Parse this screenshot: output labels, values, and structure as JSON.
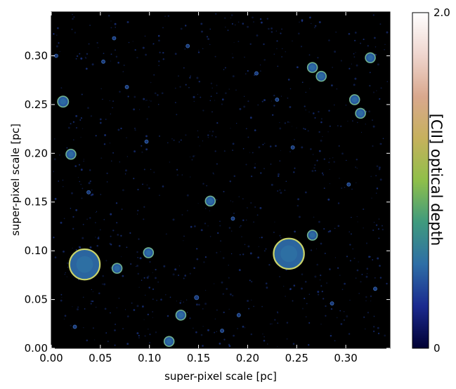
{
  "chart_data": {
    "type": "scatter",
    "xlabel": "super-pixel scale [pc]",
    "ylabel": "super-pixel scale [pc]",
    "xlim": [
      0.0,
      0.345
    ],
    "ylim": [
      0.0,
      0.345
    ],
    "xticks": [
      "0.00",
      "0.05",
      "0.10",
      "0.15",
      "0.20",
      "0.25",
      "0.30"
    ],
    "yticks": [
      "0.00",
      "0.05",
      "0.10",
      "0.15",
      "0.20",
      "0.25",
      "0.30"
    ],
    "colorbar": {
      "label": "[CII] optical depth",
      "min_label": "0",
      "max_label": "2.0",
      "range": [
        0,
        2.0
      ],
      "colors": [
        "#000033",
        "#1b2a8f",
        "#2e6ea6",
        "#3f9a7e",
        "#8fbf4a",
        "#c6b15d",
        "#d9a88e",
        "#efd6cf",
        "#ffffff"
      ]
    },
    "background_color": "#000000",
    "clouds": [
      {
        "x": 0.034,
        "y": 0.086,
        "r_pc": 0.0155,
        "tau": 1.0
      },
      {
        "x": 0.242,
        "y": 0.097,
        "r_pc": 0.0155,
        "tau": 1.0
      },
      {
        "x": 0.067,
        "y": 0.082,
        "r_pc": 0.005,
        "tau": 0.6
      },
      {
        "x": 0.099,
        "y": 0.098,
        "r_pc": 0.005,
        "tau": 0.6
      },
      {
        "x": 0.012,
        "y": 0.253,
        "r_pc": 0.0055,
        "tau": 0.6
      },
      {
        "x": 0.02,
        "y": 0.199,
        "r_pc": 0.005,
        "tau": 0.6
      },
      {
        "x": 0.162,
        "y": 0.151,
        "r_pc": 0.005,
        "tau": 0.6
      },
      {
        "x": 0.266,
        "y": 0.288,
        "r_pc": 0.005,
        "tau": 0.6
      },
      {
        "x": 0.275,
        "y": 0.279,
        "r_pc": 0.005,
        "tau": 0.6
      },
      {
        "x": 0.309,
        "y": 0.255,
        "r_pc": 0.005,
        "tau": 0.6
      },
      {
        "x": 0.315,
        "y": 0.241,
        "r_pc": 0.005,
        "tau": 0.6
      },
      {
        "x": 0.325,
        "y": 0.298,
        "r_pc": 0.005,
        "tau": 0.6
      },
      {
        "x": 0.266,
        "y": 0.116,
        "r_pc": 0.005,
        "tau": 0.6
      },
      {
        "x": 0.132,
        "y": 0.034,
        "r_pc": 0.005,
        "tau": 0.6
      },
      {
        "x": 0.12,
        "y": 0.007,
        "r_pc": 0.005,
        "tau": 0.6
      },
      {
        "x": 0.148,
        "y": 0.052,
        "r_pc": 0.0022,
        "tau": 0.4
      },
      {
        "x": 0.064,
        "y": 0.318,
        "r_pc": 0.0018,
        "tau": 0.3
      },
      {
        "x": 0.077,
        "y": 0.268,
        "r_pc": 0.0018,
        "tau": 0.3
      },
      {
        "x": 0.139,
        "y": 0.31,
        "r_pc": 0.0018,
        "tau": 0.3
      },
      {
        "x": 0.185,
        "y": 0.133,
        "r_pc": 0.0018,
        "tau": 0.3
      },
      {
        "x": 0.005,
        "y": 0.3,
        "r_pc": 0.0018,
        "tau": 0.3
      },
      {
        "x": 0.097,
        "y": 0.212,
        "r_pc": 0.0018,
        "tau": 0.3
      },
      {
        "x": 0.303,
        "y": 0.168,
        "r_pc": 0.0018,
        "tau": 0.3
      },
      {
        "x": 0.209,
        "y": 0.282,
        "r_pc": 0.0018,
        "tau": 0.3
      },
      {
        "x": 0.038,
        "y": 0.16,
        "r_pc": 0.0018,
        "tau": 0.3
      },
      {
        "x": 0.246,
        "y": 0.206,
        "r_pc": 0.0018,
        "tau": 0.3
      },
      {
        "x": 0.33,
        "y": 0.061,
        "r_pc": 0.0018,
        "tau": 0.3
      },
      {
        "x": 0.286,
        "y": 0.046,
        "r_pc": 0.0018,
        "tau": 0.3
      },
      {
        "x": 0.191,
        "y": 0.034,
        "r_pc": 0.0018,
        "tau": 0.3
      },
      {
        "x": 0.174,
        "y": 0.018,
        "r_pc": 0.0018,
        "tau": 0.3
      },
      {
        "x": 0.024,
        "y": 0.022,
        "r_pc": 0.0018,
        "tau": 0.3
      },
      {
        "x": 0.053,
        "y": 0.294,
        "r_pc": 0.0018,
        "tau": 0.3
      },
      {
        "x": 0.23,
        "y": 0.255,
        "r_pc": 0.0018,
        "tau": 0.3
      }
    ]
  }
}
